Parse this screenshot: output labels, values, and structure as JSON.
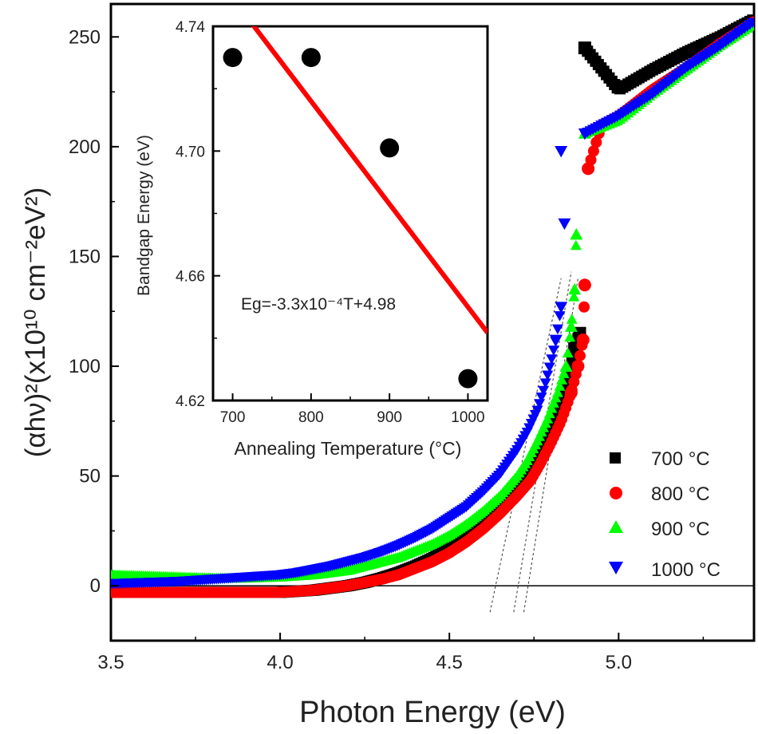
{
  "chart_data": [
    {
      "type": "scatter",
      "title": "",
      "xlabel": "Photon Energy (eV)",
      "ylabel": "(αhν)²(x10¹⁰ cm⁻²eV²)",
      "xlim": [
        3.5,
        5.4
      ],
      "ylim": [
        -25,
        265
      ],
      "x_ticks": [
        "3.5",
        "4.0",
        "4.5",
        "5.0"
      ],
      "y_ticks": [
        "0",
        "50",
        "100",
        "150",
        "200",
        "250"
      ],
      "zero_line": 0,
      "legend_position": "bottom-right",
      "series": [
        {
          "name": "700 °C",
          "marker": "square",
          "color": "#000000",
          "points": [
            [
              3.5,
              -3
            ],
            [
              3.6,
              -3
            ],
            [
              3.7,
              -3
            ],
            [
              3.8,
              -3
            ],
            [
              3.9,
              -3
            ],
            [
              4.0,
              -3
            ],
            [
              4.05,
              -2.5
            ],
            [
              4.1,
              -2
            ],
            [
              4.15,
              -1
            ],
            [
              4.2,
              0
            ],
            [
              4.25,
              1.5
            ],
            [
              4.3,
              3.5
            ],
            [
              4.35,
              6
            ],
            [
              4.4,
              9
            ],
            [
              4.45,
              12.5
            ],
            [
              4.5,
              17
            ],
            [
              4.55,
              22
            ],
            [
              4.6,
              28
            ],
            [
              4.65,
              35
            ],
            [
              4.7,
              43
            ],
            [
              4.73,
              50
            ],
            [
              4.76,
              58
            ],
            [
              4.79,
              68
            ],
            [
              4.82,
              80
            ],
            [
              4.85,
              95
            ],
            [
              4.87,
              108
            ],
            [
              4.885,
              115
            ],
            [
              4.9,
              245
            ],
            [
              5.0,
              226
            ],
            [
              5.1,
              235
            ],
            [
              5.2,
              243
            ],
            [
              5.3,
              250
            ],
            [
              5.4,
              258
            ]
          ]
        },
        {
          "name": "800 °C",
          "marker": "circle",
          "color": "#ff0000",
          "points": [
            [
              3.5,
              -3
            ],
            [
              3.6,
              -3
            ],
            [
              3.7,
              -3
            ],
            [
              3.8,
              -3
            ],
            [
              3.9,
              -3
            ],
            [
              4.0,
              -3
            ],
            [
              4.05,
              -2.5
            ],
            [
              4.1,
              -2
            ],
            [
              4.15,
              -1
            ],
            [
              4.2,
              0
            ],
            [
              4.25,
              1.5
            ],
            [
              4.3,
              3
            ],
            [
              4.35,
              5
            ],
            [
              4.4,
              8
            ],
            [
              4.45,
              11
            ],
            [
              4.5,
              15
            ],
            [
              4.55,
              20
            ],
            [
              4.6,
              26
            ],
            [
              4.65,
              33
            ],
            [
              4.7,
              41
            ],
            [
              4.74,
              48
            ],
            [
              4.77,
              56
            ],
            [
              4.8,
              65
            ],
            [
              4.83,
              75
            ],
            [
              4.86,
              88
            ],
            [
              4.88,
              100
            ],
            [
              4.895,
              112
            ],
            [
              4.9,
              137
            ],
            [
              4.91,
              190
            ],
            [
              4.95,
              210
            ],
            [
              5.0,
              214
            ],
            [
              5.1,
              226
            ],
            [
              5.2,
              236
            ],
            [
              5.3,
              247
            ],
            [
              5.4,
              257
            ]
          ]
        },
        {
          "name": "900 °C",
          "marker": "triangle-up",
          "color": "#00ff00",
          "points": [
            [
              3.5,
              5
            ],
            [
              3.6,
              4.5
            ],
            [
              3.7,
              4
            ],
            [
              3.8,
              3.5
            ],
            [
              3.9,
              3.5
            ],
            [
              4.0,
              4
            ],
            [
              4.1,
              5
            ],
            [
              4.15,
              6
            ],
            [
              4.2,
              7
            ],
            [
              4.25,
              9
            ],
            [
              4.3,
              11
            ],
            [
              4.35,
              13
            ],
            [
              4.4,
              16
            ],
            [
              4.45,
              19
            ],
            [
              4.5,
              23
            ],
            [
              4.55,
              28
            ],
            [
              4.6,
              34
            ],
            [
              4.65,
              41
            ],
            [
              4.7,
              50
            ],
            [
              4.73,
              57
            ],
            [
              4.76,
              66
            ],
            [
              4.79,
              76
            ],
            [
              4.82,
              88
            ],
            [
              4.845,
              100
            ],
            [
              4.86,
              118
            ],
            [
              4.87,
              135
            ],
            [
              4.875,
              160
            ],
            [
              4.9,
              206
            ],
            [
              5.0,
              212
            ],
            [
              5.1,
              224
            ],
            [
              5.2,
              235
            ],
            [
              5.3,
              246
            ],
            [
              5.4,
              256
            ]
          ]
        },
        {
          "name": "1000 °C",
          "marker": "triangle-down",
          "color": "#0000ff",
          "points": [
            [
              3.5,
              1
            ],
            [
              3.6,
              1.5
            ],
            [
              3.7,
              2
            ],
            [
              3.8,
              3
            ],
            [
              3.9,
              4
            ],
            [
              4.0,
              5
            ],
            [
              4.05,
              6
            ],
            [
              4.1,
              7.5
            ],
            [
              4.15,
              9
            ],
            [
              4.2,
              11
            ],
            [
              4.25,
              13
            ],
            [
              4.3,
              15.5
            ],
            [
              4.35,
              18.5
            ],
            [
              4.4,
              22
            ],
            [
              4.45,
              26
            ],
            [
              4.5,
              31
            ],
            [
              4.55,
              36
            ],
            [
              4.6,
              43
            ],
            [
              4.65,
              51
            ],
            [
              4.7,
              62
            ],
            [
              4.73,
              70
            ],
            [
              4.76,
              80
            ],
            [
              4.78,
              90
            ],
            [
              4.8,
              102
            ],
            [
              4.815,
              112
            ],
            [
              4.83,
              127
            ],
            [
              4.84,
              165
            ],
            [
              4.83,
              198
            ],
            [
              4.9,
              206
            ],
            [
              5.0,
              214
            ],
            [
              5.1,
              224
            ],
            [
              5.2,
              236
            ],
            [
              5.3,
              246
            ],
            [
              5.4,
              257
            ]
          ]
        }
      ],
      "extrapolation_lines": [
        {
          "from": [
            4.62,
            -12
          ],
          "to": [
            4.83,
            140
          ]
        },
        {
          "from": [
            4.69,
            -12
          ],
          "to": [
            4.86,
            143
          ]
        },
        {
          "from": [
            4.72,
            -12
          ],
          "to": [
            4.88,
            140
          ]
        }
      ]
    },
    {
      "type": "scatter",
      "title": "",
      "xlabel": "Annealing Temperature (°C)",
      "ylabel": "Bandgap Energy (eV)",
      "xlim": [
        675,
        1025
      ],
      "ylim": [
        4.62,
        4.74
      ],
      "x_ticks": [
        "700",
        "800",
        "900",
        "1000"
      ],
      "y_ticks": [
        "4.62",
        "4.66",
        "4.70",
        "4.74"
      ],
      "points": [
        [
          700,
          4.73
        ],
        [
          800,
          4.73
        ],
        [
          900,
          4.701
        ],
        [
          1000,
          4.627
        ]
      ],
      "fit": {
        "slope": -0.00033,
        "intercept": 4.98,
        "color": "#ff0000"
      },
      "annotation": "Eg=-3.3x10⁻⁴T+4.98"
    }
  ]
}
